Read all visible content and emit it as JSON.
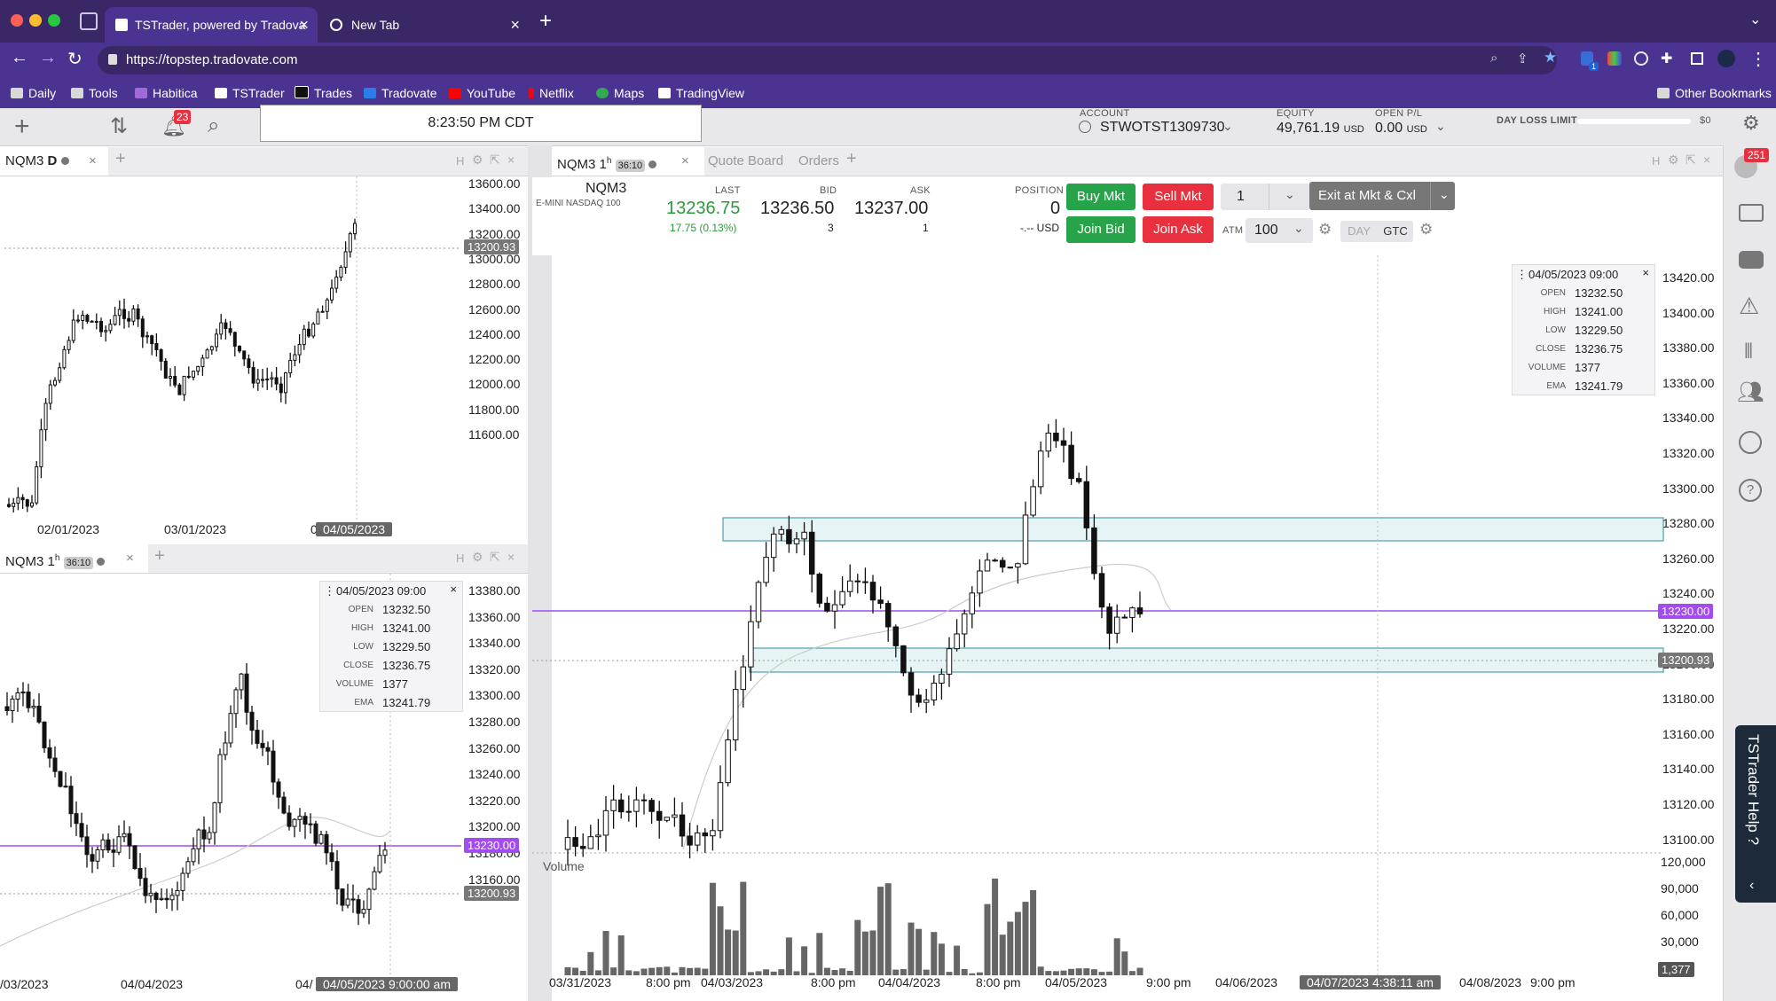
{
  "browser": {
    "tabs": [
      {
        "title": "TSTrader, powered by Tradova"
      },
      {
        "title": "New Tab"
      }
    ],
    "url": "https://topstep.tradovate.com",
    "bookmarks": [
      "Daily",
      "Tools",
      "Habitica",
      "TSTrader",
      "Trades",
      "Tradovate",
      "YouTube",
      "Netflix",
      "Maps",
      "TradingView"
    ],
    "other_bookmarks": "Other Bookmarks",
    "ext_badge": "1"
  },
  "toolbar": {
    "notifications": "23",
    "clock": "8:23:50 PM CDT",
    "account_label": "ACCOUNT",
    "account": "STWOTST1309730",
    "equity_label": "EQUITY",
    "equity": "49,761.19",
    "equity_unit": "USD",
    "openpl_label": "OPEN P/L",
    "openpl": "0.00",
    "openpl_unit": "USD",
    "dayloss_label": "DAY LOSS LIMIT",
    "dayloss_value": "$0",
    "sidebar_badge": "251"
  },
  "daily_panel": {
    "tab": "NQM3",
    "tab_suffix": "D",
    "controls": "H",
    "y_ticks": [
      "13600.00",
      "13400.00",
      "13200.00",
      "13000.00",
      "12800.00",
      "12600.00",
      "12400.00",
      "12200.00",
      "12000.00",
      "11800.00",
      "11600.00"
    ],
    "x_ticks": [
      "02/01/2023",
      "03/01/2023",
      "0"
    ],
    "price_marker": "13200.93",
    "date_marker": "04/05/2023"
  },
  "hour_panel_small": {
    "tab": "NQM3 1",
    "tab_sup": "h",
    "badge": "36:10",
    "controls": "H",
    "y_ticks": [
      "13380.00",
      "13360.00",
      "13340.00",
      "13320.00",
      "13300.00",
      "13280.00",
      "13260.00",
      "13240.00",
      "13220.00",
      "13200.00",
      "13180.00",
      "13160.00"
    ],
    "x_ticks": [
      "/03/2023",
      "04/04/2023",
      "04/"
    ],
    "price_marker_1": "13230.00",
    "price_marker_2": "13200.93",
    "date_marker": "04/05/2023 9:00:00 am",
    "ohlc": {
      "date": "04/05/2023 09:00",
      "open": "13232.50",
      "high": "13241.00",
      "low": "13229.50",
      "close": "13236.75",
      "volume": "1377",
      "ema": "13241.79"
    }
  },
  "main_panel": {
    "tab": "NQM3 1",
    "tab_sup": "h",
    "badge": "36:10",
    "tab_quote": "Quote Board",
    "tab_orders": "Orders",
    "controls": "H",
    "symbol": "NQM3",
    "symbol_desc": "E-MINI NASDAQ 100",
    "last_label": "LAST",
    "last": "13236.75",
    "change": "17.75 (0.13%)",
    "bid_label": "BID",
    "bid": "13236.50",
    "bid_size": "3",
    "ask_label": "ASK",
    "ask": "13237.00",
    "ask_size": "1",
    "position_label": "POSITION",
    "position": "0",
    "position_usd": "-.-- USD",
    "buy_mkt": "Buy Mkt",
    "sell_mkt": "Sell Mkt",
    "join_bid": "Join Bid",
    "join_ask": "Join Ask",
    "qty": "1",
    "exit": "Exit at Mkt & Cxl",
    "atm_label": "ATM",
    "atm_value": "100",
    "day": "DAY",
    "gtc": "GTC",
    "y_ticks": [
      "13420.00",
      "13400.00",
      "13380.00",
      "13360.00",
      "13340.00",
      "13320.00",
      "13300.00",
      "13280.00",
      "13260.00",
      "13240.00",
      "13220.00",
      "13200.00",
      "13180.00",
      "13160.00",
      "13140.00",
      "13120.00",
      "13100.00"
    ],
    "price_marker_1": "13230.00",
    "price_marker_2": "13200.93",
    "volume_label": "Volume",
    "volume_ticks": [
      "120,000",
      "90,000",
      "60,000",
      "30,000"
    ],
    "volume_marker": "1,377",
    "x_ticks": [
      "03/31/2023",
      "8:00 pm",
      "04/03/2023",
      "8:00 pm",
      "04/04/2023",
      "8:00 pm",
      "04/05/2023",
      "9:00 pm",
      "04/06/2023",
      "9:00 pm",
      "04/08/2023",
      "9:00 pm"
    ],
    "crosshair_date": "04/07/2023 4:38:11 am",
    "ohlc": {
      "date": "04/05/2023 09:00",
      "open": "13232.50",
      "high": "13241.00",
      "low": "13229.50",
      "close": "13236.75",
      "volume": "1377",
      "ema": "13241.79"
    }
  },
  "help_tab": "TSTrader Help ?",
  "colors": {
    "accent": "#4b3391",
    "buy": "#27a34a",
    "sell": "#e8303f",
    "price_line": "#a24bf0",
    "zone": "#5aa7b0",
    "last": "#2c9a3c"
  }
}
